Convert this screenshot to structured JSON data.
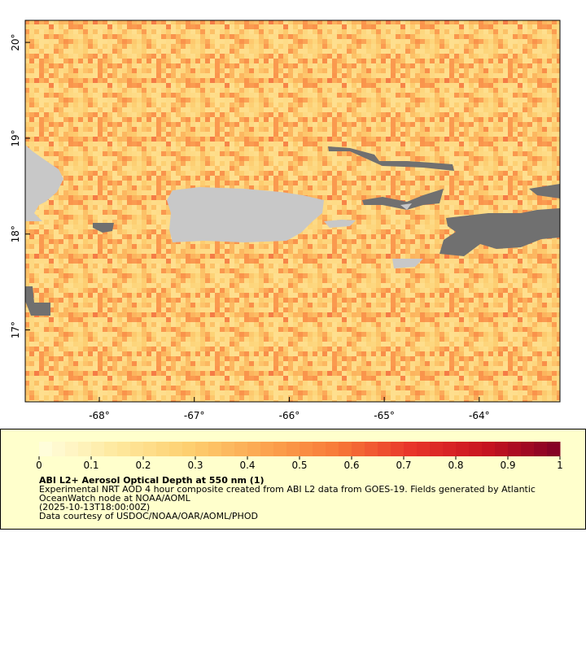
{
  "map": {
    "xlim": [
      -68.78,
      -63.15
    ],
    "ylim": [
      16.25,
      20.23
    ],
    "xticks": [
      {
        "value": -68,
        "label": "-68°"
      },
      {
        "value": -67,
        "label": "-67°"
      },
      {
        "value": -66,
        "label": "-66°"
      },
      {
        "value": -65,
        "label": "-65°"
      },
      {
        "value": -64,
        "label": "-64°"
      }
    ],
    "yticks": [
      {
        "value": 17,
        "label": "17°"
      },
      {
        "value": 18,
        "label": "18°"
      },
      {
        "value": 19,
        "label": "19°"
      },
      {
        "value": 20,
        "label": "20°"
      }
    ]
  },
  "colorbar": {
    "title": "ABI L2+ Aerosol Optical Depth at 550 nm (1)",
    "range": [
      0,
      1
    ],
    "ticks": [
      0,
      0.1,
      0.2,
      0.3,
      0.4,
      0.5,
      0.6,
      0.7,
      0.8,
      0.9,
      1
    ],
    "colors": [
      "#ffffe0",
      "#fee9a0",
      "#fdd070",
      "#fca650",
      "#f87a38",
      "#e8352a",
      "#c81420",
      "#800026"
    ],
    "steps": 40
  },
  "notes": [
    "Experimental NRT AOD 4 hour composite created from ABI L2 data from GOES-19. Fields generated by Atlantic",
    "OceanWatch node at NOAA/AOML",
    "(2025-10-13T18:00:00Z)",
    "Data courtesy of USDOC/NOAA/OAR/AOML/PHOD"
  ]
}
